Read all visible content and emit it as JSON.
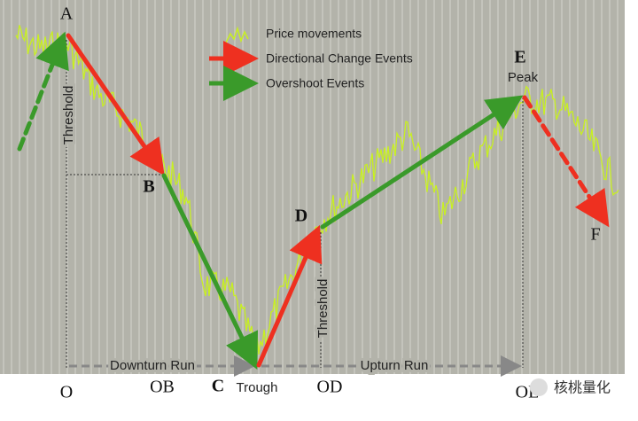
{
  "points": {
    "a": "A",
    "b": "B",
    "c": "C",
    "d": "D",
    "e": "E",
    "f": "F"
  },
  "annotations": {
    "peak": "Peak",
    "trough": "Trough",
    "threshold_1": "Threshold",
    "threshold_2": "Threshold",
    "downturn_run": "Downturn Run",
    "upturn_run": "Upturn Run"
  },
  "x_labels": {
    "o": "O",
    "ob": "OB",
    "od": "OD",
    "ol": "OL"
  },
  "legend": {
    "price": "Price movements",
    "dc": "Directional Change Events",
    "os": "Overshoot Events"
  },
  "watermark": "核桃量化"
}
